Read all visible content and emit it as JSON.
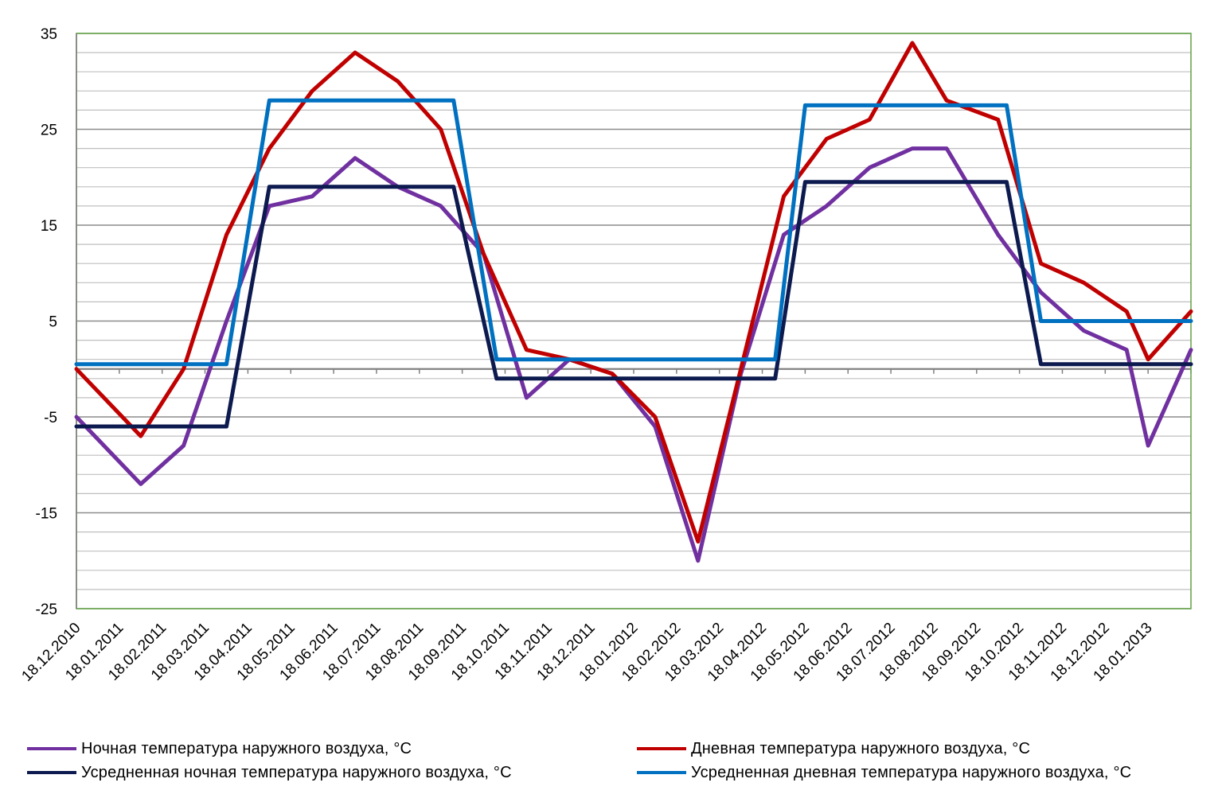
{
  "chart_data": {
    "type": "line",
    "title": "",
    "xlabel": "",
    "ylabel": "",
    "ylim": [
      -25,
      35
    ],
    "yticks": [
      35,
      25,
      15,
      5,
      -5,
      -15,
      -25
    ],
    "ytick_labels": [
      "35",
      "25",
      "15",
      "5",
      "-5",
      "-15",
      "-25"
    ],
    "categories": [
      "18.12.2010",
      "18.01.2011",
      "18.02.2011",
      "18.03.2011",
      "18.04.2011",
      "18.05.2011",
      "18.06.2011",
      "18.07.2011",
      "18.08.2011",
      "18.09.2011",
      "18.10.2011",
      "18.11.2011",
      "18.12.2011",
      "18.01.2012",
      "18.02.2012",
      "18.03.2012",
      "18.04.2012",
      "18.05.2012",
      "18.06.2012",
      "18.07.2012",
      "18.08.2012",
      "18.09.2012",
      "18.10.2012",
      "18.11.2012",
      "18.12.2012",
      "18.01.2013"
    ],
    "grid": true,
    "legend_position": "bottom",
    "series": [
      {
        "name": "Ночная температура  наружного воздуха, °С",
        "color": "#7030A0",
        "points": [
          [
            0,
            -5
          ],
          [
            1.5,
            -12
          ],
          [
            2.5,
            -8
          ],
          [
            3.5,
            5
          ],
          [
            4.5,
            17
          ],
          [
            5.5,
            18
          ],
          [
            6.5,
            22
          ],
          [
            7.5,
            19
          ],
          [
            8.5,
            17
          ],
          [
            9.5,
            12
          ],
          [
            10.5,
            -3
          ],
          [
            11.5,
            1
          ],
          [
            12.5,
            -0.5
          ],
          [
            13.5,
            -6
          ],
          [
            14.5,
            -20
          ],
          [
            15.5,
            -0.5
          ],
          [
            16.5,
            14
          ],
          [
            17.5,
            17
          ],
          [
            18.5,
            21
          ],
          [
            19.5,
            23
          ],
          [
            20.3,
            23
          ],
          [
            21.5,
            14
          ],
          [
            22.5,
            8
          ],
          [
            23.5,
            4
          ],
          [
            24.5,
            2
          ],
          [
            25,
            -8
          ],
          [
            26,
            2
          ]
        ]
      },
      {
        "name": "Дневная температура  наружного воздуха, °С",
        "color": "#C00000",
        "points": [
          [
            0,
            0
          ],
          [
            1.5,
            -7
          ],
          [
            2.5,
            0
          ],
          [
            3.5,
            14
          ],
          [
            4.5,
            23
          ],
          [
            5.5,
            29
          ],
          [
            6.5,
            33
          ],
          [
            7.5,
            30
          ],
          [
            8.5,
            25
          ],
          [
            9.5,
            12
          ],
          [
            10.5,
            2
          ],
          [
            11.5,
            1
          ],
          [
            12.5,
            -0.5
          ],
          [
            13.5,
            -5
          ],
          [
            14.5,
            -18
          ],
          [
            15.5,
            0
          ],
          [
            16.5,
            18
          ],
          [
            17.5,
            24
          ],
          [
            18.5,
            26
          ],
          [
            19.5,
            34
          ],
          [
            20.3,
            28
          ],
          [
            21.5,
            26
          ],
          [
            22.5,
            11
          ],
          [
            23.5,
            9
          ],
          [
            24.5,
            6
          ],
          [
            25,
            1
          ],
          [
            26,
            6
          ]
        ]
      },
      {
        "name": "Усредненная ночная температура  наружного воздуха, °С",
        "color": "#0C1A4F",
        "points": [
          [
            0,
            -6
          ],
          [
            3.5,
            -6
          ],
          [
            4.5,
            19
          ],
          [
            8.8,
            19
          ],
          [
            9.8,
            -1
          ],
          [
            16.3,
            -1
          ],
          [
            17,
            19.5
          ],
          [
            21.7,
            19.5
          ],
          [
            22.5,
            0.5
          ],
          [
            26,
            0.5
          ]
        ]
      },
      {
        "name": "Усредненная дневная температура  наружного воздуха, °С",
        "color": "#0070C0",
        "points": [
          [
            0,
            0.5
          ],
          [
            3.5,
            0.5
          ],
          [
            4.5,
            28
          ],
          [
            8.8,
            28
          ],
          [
            9.8,
            1
          ],
          [
            16.3,
            1
          ],
          [
            17,
            27.5
          ],
          [
            21.7,
            27.5
          ],
          [
            22.5,
            5
          ],
          [
            26,
            5
          ]
        ]
      }
    ]
  }
}
